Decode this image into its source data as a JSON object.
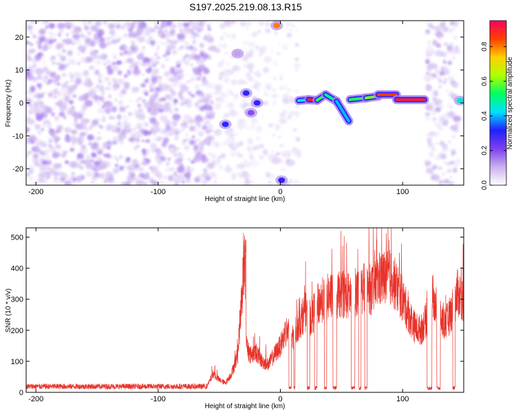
{
  "title": "S197.2025.219.08.13.R15",
  "chart_data": [
    {
      "type": "heatmap",
      "xlabel": "Height of straight line (km)",
      "ylabel": "Frequency (Hz)",
      "xlim": [
        -208,
        150
      ],
      "ylim": [
        -25,
        25
      ],
      "xticks": [
        -200,
        -100,
        0,
        100
      ],
      "yticks": [
        -20,
        -10,
        0,
        10,
        20
      ],
      "colorbar": {
        "label": "Normalized spectral amplitude",
        "range": [
          0,
          0.95
        ],
        "ticks": [
          "0.0",
          "0.2",
          "0.4",
          "0.6",
          "0.8"
        ],
        "colors": [
          "#ffffff",
          "#c9b0ee",
          "#7f3ff0",
          "#2020ff",
          "#00e0ff",
          "#00ff60",
          "#b0ff00",
          "#ffd000",
          "#ff4000",
          "#ff0060"
        ]
      },
      "features": [
        {
          "region": "noise",
          "x": [
            -208,
            -55
          ],
          "y": [
            -25,
            25
          ],
          "amplitude": 0.1
        },
        {
          "region": "noise",
          "x": [
            -55,
            15
          ],
          "y": [
            -25,
            25
          ],
          "amplitude": 0.05
        },
        {
          "region": "blob",
          "x": -45,
          "y": -6.5,
          "amplitude": 0.3
        },
        {
          "region": "blob",
          "x": -28,
          "y": 3,
          "amplitude": 0.3
        },
        {
          "region": "blob",
          "x": -19,
          "y": 0,
          "amplitude": 0.3
        },
        {
          "region": "blob",
          "x": -24,
          "y": -3,
          "amplitude": 0.2
        },
        {
          "region": "blob",
          "x": -35,
          "y": 15,
          "amplitude": 0.12
        },
        {
          "region": "blob",
          "x": -3,
          "y": 23.5,
          "amplitude": 0.8
        },
        {
          "region": "blob",
          "x": 1,
          "y": -23.5,
          "amplitude": 0.3
        },
        {
          "region": "ridge",
          "x": [
            15,
            23
          ],
          "y": [
            0.7,
            1.0
          ],
          "amplitude": 0.45
        },
        {
          "region": "ridge",
          "x": [
            23,
            30
          ],
          "y": [
            1.0,
            0.8
          ],
          "amplitude": 0.9
        },
        {
          "region": "ridge",
          "x": [
            30,
            37
          ],
          "y": [
            0.8,
            2.5
          ],
          "amplitude": 0.55
        },
        {
          "region": "ridge",
          "x": [
            37,
            46
          ],
          "y": [
            2.5,
            0.5
          ],
          "amplitude": 0.5
        },
        {
          "region": "ridge",
          "x": [
            46,
            56
          ],
          "y": [
            0.5,
            -5.5
          ],
          "amplitude": 0.4
        },
        {
          "region": "ridge",
          "x": [
            57,
            70
          ],
          "y": [
            1.0,
            1.5
          ],
          "amplitude": 0.55
        },
        {
          "region": "ridge",
          "x": [
            70,
            80
          ],
          "y": [
            1.5,
            2.0
          ],
          "amplitude": 0.6
        },
        {
          "region": "ridge",
          "x": [
            80,
            95
          ],
          "y": [
            2.5,
            2.5
          ],
          "amplitude": 0.85
        },
        {
          "region": "ridge",
          "x": [
            95,
            118
          ],
          "y": [
            1.0,
            1.0
          ],
          "amplitude": 0.9
        },
        {
          "region": "blob",
          "x": 147,
          "y": 0.7,
          "amplitude": 0.45
        },
        {
          "region": "noise",
          "x": [
            120,
            145
          ],
          "y": [
            -25,
            25
          ],
          "amplitude": 0.08
        }
      ]
    },
    {
      "type": "line",
      "xlabel": "Height of straight line (km)",
      "ylabel": "SNR (10 * v/v)",
      "xlim": [
        -208,
        150
      ],
      "ylim": [
        0,
        530
      ],
      "xticks": [
        -200,
        -100,
        0,
        100
      ],
      "yticks": [
        0,
        100,
        200,
        300,
        400,
        500
      ],
      "color": "#e8332a",
      "series": [
        {
          "x": [
            -208,
            -60,
            -55,
            -50,
            -45,
            -40,
            -35,
            -32,
            -30,
            -28,
            -25,
            -20,
            -15,
            -10,
            -5,
            0,
            5,
            10,
            15,
            20,
            25,
            30,
            35,
            40,
            45,
            50,
            55,
            60,
            65,
            70,
            75,
            80,
            85,
            90,
            95,
            100,
            105,
            110,
            115,
            120,
            125,
            130,
            135,
            140,
            145,
            150
          ],
          "values": [
            20,
            20,
            60,
            40,
            30,
            60,
            120,
            280,
            400,
            160,
            120,
            130,
            100,
            90,
            120,
            150,
            200,
            180,
            220,
            260,
            240,
            280,
            300,
            310,
            300,
            320,
            310,
            320,
            330,
            335,
            330,
            360,
            370,
            370,
            340,
            300,
            250,
            210,
            200,
            240,
            310,
            240,
            220,
            260,
            320,
            300
          ]
        }
      ],
      "dropouts": [
        [
          7,
          9
        ],
        [
          11,
          12
        ],
        [
          22,
          24
        ],
        [
          28,
          30
        ],
        [
          36,
          38
        ],
        [
          43,
          46
        ],
        [
          58,
          61
        ],
        [
          64,
          66
        ],
        [
          69,
          71
        ],
        [
          120,
          124
        ],
        [
          128,
          131
        ],
        [
          141,
          143
        ]
      ]
    }
  ]
}
